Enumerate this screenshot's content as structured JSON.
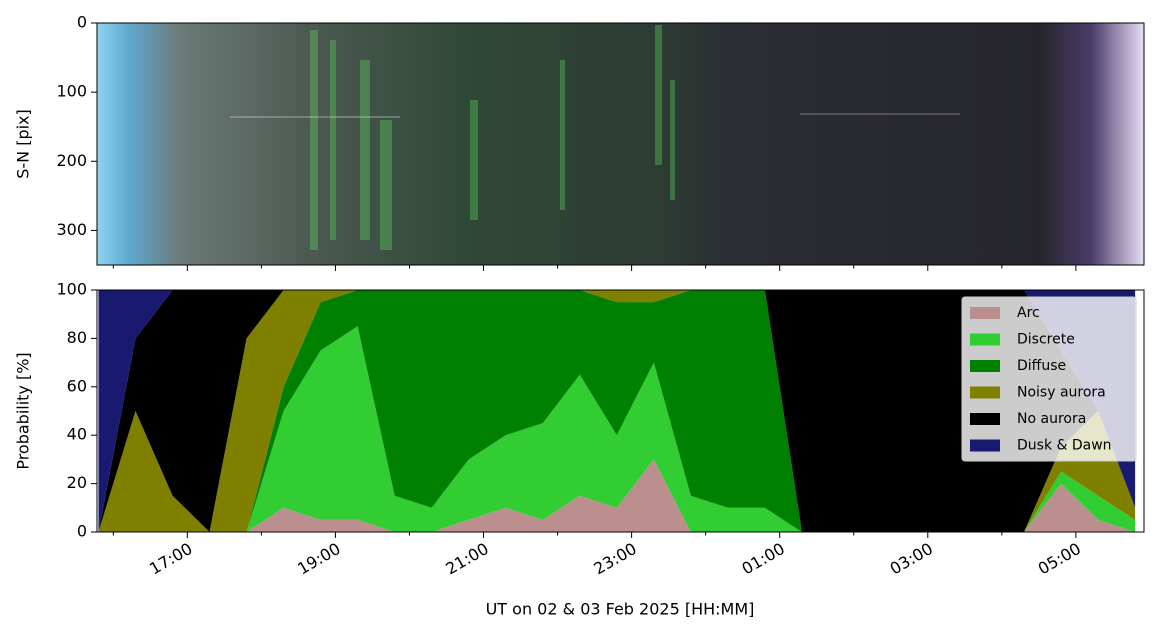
{
  "chart_data": [
    {
      "type": "image",
      "ylabel": "S-N [pix]",
      "ylim": [
        0,
        350
      ],
      "y_inverted": true,
      "yticks": [
        0,
        100,
        200,
        300
      ],
      "xlim": [
        15.78,
        29.92
      ],
      "xticks": [
        17,
        19,
        21,
        23,
        25,
        27,
        29
      ],
      "xminor": [
        16,
        18,
        20,
        22,
        24,
        26,
        28
      ]
    },
    {
      "type": "stacked_area",
      "ylabel": "Probability [%]",
      "xlabel": "UT on 02 & 03 Feb 2025 [HH:MM]",
      "xlim": [
        15.78,
        29.92
      ],
      "xticks": [
        {
          "value": 17,
          "label": "17:00"
        },
        {
          "value": 19,
          "label": "19:00"
        },
        {
          "value": 21,
          "label": "21:00"
        },
        {
          "value": 23,
          "label": "23:00"
        },
        {
          "value": 25,
          "label": "01:00"
        },
        {
          "value": 27,
          "label": "03:00"
        },
        {
          "value": 29,
          "label": "05:00"
        }
      ],
      "xminor": [
        16,
        18,
        20,
        22,
        24,
        26,
        28
      ],
      "ylim": [
        0,
        100
      ],
      "yticks": [
        0,
        20,
        40,
        60,
        80,
        100
      ],
      "legend": "upper right",
      "x": [
        15.8,
        16.3,
        16.8,
        17.3,
        17.8,
        18.3,
        18.8,
        19.3,
        19.8,
        20.3,
        20.8,
        21.3,
        21.8,
        22.3,
        22.8,
        23.3,
        23.8,
        24.3,
        24.8,
        25.3,
        25.8,
        26.3,
        26.8,
        27.3,
        27.8,
        28.3,
        28.8,
        29.3,
        29.8
      ],
      "series": [
        {
          "name": "Arc",
          "color": "#bc8f8f",
          "values": [
            0,
            0,
            0,
            0,
            0,
            10,
            5,
            5,
            0,
            0,
            5,
            10,
            5,
            15,
            10,
            30,
            0,
            0,
            0,
            0,
            0,
            0,
            0,
            0,
            0,
            0,
            20,
            5,
            0
          ]
        },
        {
          "name": "Discrete",
          "color": "#32cd32",
          "values": [
            0,
            0,
            0,
            0,
            0,
            40,
            70,
            80,
            15,
            10,
            25,
            30,
            40,
            50,
            30,
            40,
            15,
            10,
            10,
            0,
            0,
            0,
            0,
            0,
            0,
            0,
            5,
            10,
            5
          ]
        },
        {
          "name": "Diffuse",
          "color": "#008000",
          "values": [
            0,
            0,
            0,
            0,
            0,
            10,
            20,
            15,
            85,
            90,
            70,
            60,
            55,
            35,
            55,
            25,
            85,
            90,
            90,
            0,
            0,
            0,
            0,
            0,
            0,
            0,
            0,
            0,
            0
          ]
        },
        {
          "name": "Noisy aurora",
          "color": "#808000",
          "values": [
            0,
            50,
            15,
            0,
            80,
            40,
            5,
            0,
            0,
            0,
            0,
            0,
            0,
            0,
            5,
            5,
            0,
            0,
            0,
            0,
            0,
            0,
            0,
            0,
            0,
            0,
            10,
            35,
            5
          ]
        },
        {
          "name": "No aurora",
          "color": "#000000",
          "values": [
            0,
            30,
            85,
            100,
            20,
            0,
            0,
            0,
            0,
            0,
            0,
            0,
            0,
            0,
            0,
            0,
            0,
            0,
            0,
            100,
            100,
            100,
            100,
            100,
            100,
            100,
            40,
            0,
            0
          ]
        },
        {
          "name": "Dusk & Dawn",
          "color": "#191970",
          "values": [
            100,
            20,
            0,
            0,
            0,
            0,
            0,
            0,
            0,
            0,
            0,
            0,
            0,
            0,
            0,
            0,
            0,
            0,
            0,
            0,
            0,
            0,
            0,
            0,
            0,
            0,
            25,
            50,
            90
          ]
        }
      ]
    }
  ]
}
